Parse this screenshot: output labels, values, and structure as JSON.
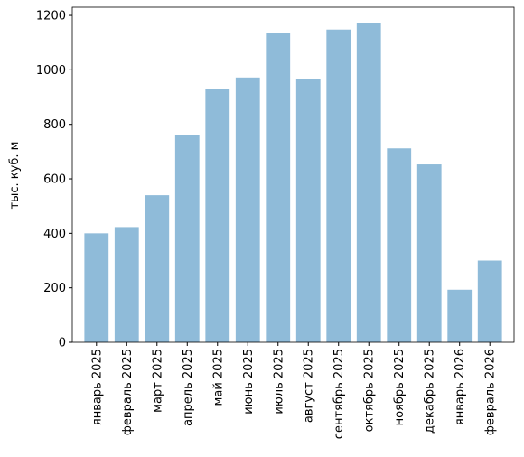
{
  "chart_data": {
    "type": "bar",
    "y_label": "тыс. куб. м",
    "categories": [
      "январь 2025",
      "февраль 2025",
      "март 2025",
      "апрель 2025",
      "май 2025",
      "июнь 2025",
      "июль 2025",
      "август 2025",
      "сентябрь 2025",
      "октябрь 2025",
      "ноябрь 2025",
      "декабрь 2025",
      "январь 2026",
      "февраль 2026"
    ],
    "values": [
      400,
      423,
      540,
      762,
      930,
      972,
      1135,
      965,
      1148,
      1172,
      712,
      653,
      193,
      300
    ],
    "color": "#8fbbd9",
    "ylim": [
      0,
      1230
    ],
    "yticks": [
      0,
      200,
      400,
      600,
      800,
      1000,
      1200
    ]
  }
}
